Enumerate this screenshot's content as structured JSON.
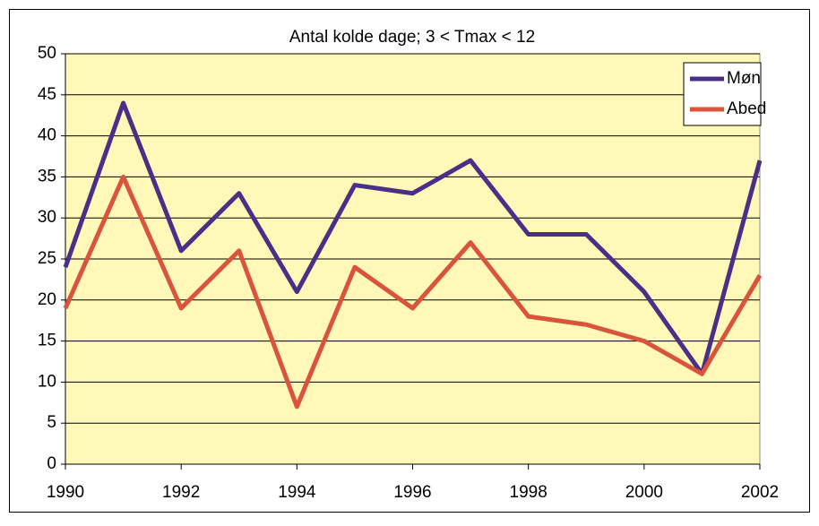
{
  "chart_data": {
    "type": "line",
    "title": "Antal kolde dage; 3 < Tmax < 12",
    "x": [
      1990,
      1991,
      1992,
      1993,
      1994,
      1995,
      1996,
      1997,
      1998,
      1999,
      2000,
      2001,
      2002
    ],
    "series": [
      {
        "name": "Møn",
        "color": "#4a2f86",
        "values": [
          24,
          44,
          26,
          33,
          21,
          34,
          33,
          37,
          28,
          28,
          21,
          11,
          37
        ]
      },
      {
        "name": "Abed",
        "color": "#d9543a",
        "values": [
          19,
          35,
          19,
          26,
          7,
          24,
          19,
          27,
          18,
          17,
          15,
          11,
          23
        ]
      }
    ],
    "xlim": [
      1990,
      2002
    ],
    "xticks": [
      1990,
      1992,
      1994,
      1996,
      1998,
      2000,
      2002
    ],
    "ylim": [
      0,
      50
    ],
    "yticks": [
      0,
      5,
      10,
      15,
      20,
      25,
      30,
      35,
      40,
      45,
      50
    ],
    "grid": true,
    "legend": "top-right",
    "background": "#fff8b8"
  }
}
